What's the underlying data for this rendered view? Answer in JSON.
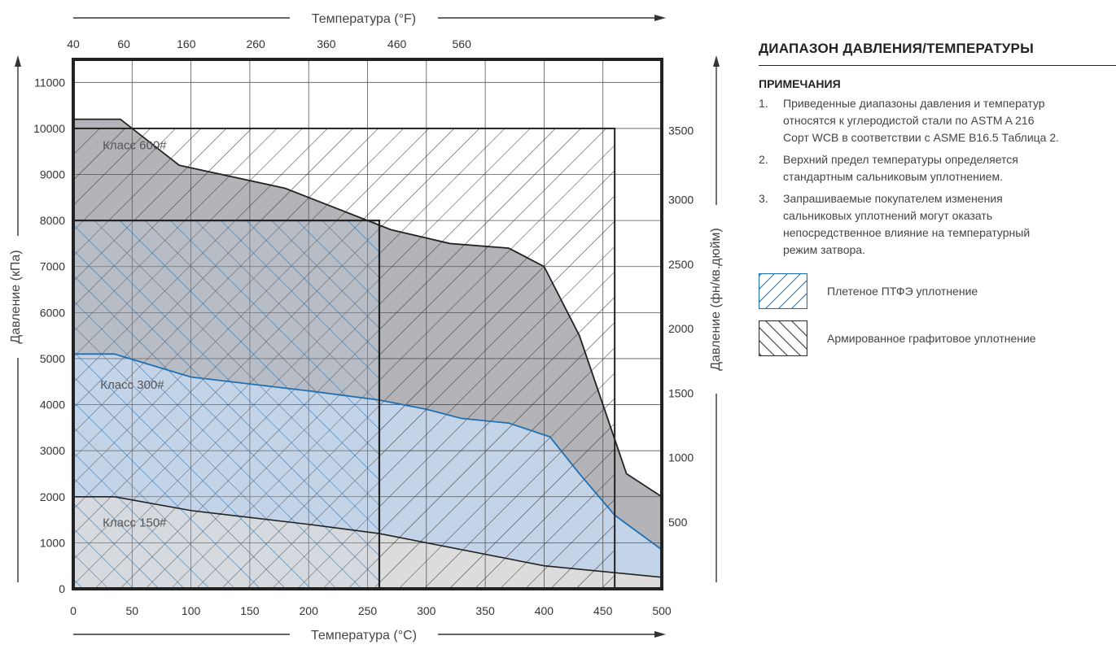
{
  "chart_data": {
    "type": "area",
    "title": "ДИАПАЗОН ДАВЛЕНИЯ/ТЕМПЕРАТУРЫ",
    "xlabel_bottom": "Температура (°C)",
    "xlabel_top": "Температура (°F)",
    "ylabel_left": "Давление (кПа)",
    "ylabel_right": "Давление (фн/кв.дюйм)",
    "x_range": [
      0,
      500
    ],
    "y_range": [
      0,
      11500
    ],
    "x_ticks": [
      0,
      50,
      100,
      150,
      200,
      250,
      300,
      350,
      400,
      450,
      500
    ],
    "y_ticks": [
      0,
      1000,
      2000,
      3000,
      4000,
      5000,
      6000,
      7000,
      8000,
      9000,
      10000,
      11000
    ],
    "top_ticks": [
      {
        "label": "40",
        "x": 0
      },
      {
        "label": "60",
        "x": 43
      },
      {
        "label": "160",
        "x": 96
      },
      {
        "label": "260",
        "x": 155
      },
      {
        "label": "360",
        "x": 215
      },
      {
        "label": "460",
        "x": 275
      },
      {
        "label": "560",
        "x": 330
      }
    ],
    "right_ticks": [
      {
        "label": "500",
        "y": 1450
      },
      {
        "label": "1000",
        "y": 2850
      },
      {
        "label": "1500",
        "y": 4250
      },
      {
        "label": "2000",
        "y": 5650
      },
      {
        "label": "2500",
        "y": 7050
      },
      {
        "label": "3000",
        "y": 8450
      },
      {
        "label": "3500",
        "y": 9950
      }
    ],
    "grid": true,
    "series": [
      {
        "name": "Класс 600#",
        "points": [
          [
            0,
            10200
          ],
          [
            40,
            10200
          ],
          [
            90,
            9200
          ],
          [
            180,
            8700
          ],
          [
            270,
            7800
          ],
          [
            320,
            7500
          ],
          [
            370,
            7400
          ],
          [
            400,
            7000
          ],
          [
            430,
            5500
          ],
          [
            450,
            4000
          ],
          [
            470,
            2500
          ],
          [
            500,
            2000
          ]
        ]
      },
      {
        "name": "Класс 300#",
        "points": [
          [
            0,
            5100
          ],
          [
            35,
            5100
          ],
          [
            100,
            4600
          ],
          [
            200,
            4300
          ],
          [
            260,
            4100
          ],
          [
            300,
            3900
          ],
          [
            330,
            3700
          ],
          [
            370,
            3600
          ],
          [
            405,
            3300
          ],
          [
            430,
            2500
          ],
          [
            460,
            1600
          ],
          [
            500,
            850
          ]
        ]
      },
      {
        "name": "Класс 150#",
        "points": [
          [
            0,
            2000
          ],
          [
            35,
            2000
          ],
          [
            100,
            1700
          ],
          [
            200,
            1400
          ],
          [
            260,
            1200
          ],
          [
            400,
            500
          ],
          [
            500,
            250
          ]
        ]
      }
    ],
    "regions": [
      {
        "name": "Плетеное ПТФЭ уплотнение",
        "x": [
          0,
          260
        ],
        "y": [
          0,
          8000
        ]
      },
      {
        "name": "Армированное графитовое уплотнение",
        "x": [
          0,
          460
        ],
        "y": [
          0,
          10000
        ]
      }
    ]
  },
  "panel": {
    "title": "ДИАПАЗОН ДАВЛЕНИЯ/ТЕМПЕРАТУРЫ",
    "notes_heading": "ПРИМЕЧАНИЯ",
    "notes": [
      {
        "num": "1.",
        "text": "Приведенные диапазоны давления и температур\nотносятся к углеродистой стали по ASTM A 216\nСорт WCB в соответствии с ASME B16.5 Таблица 2."
      },
      {
        "num": "2.",
        "text": "Верхний предел температуры определяется\nстандартным сальниковым уплотнением."
      },
      {
        "num": "3.",
        "text": "Запрашиваемые покупателем изменения\nсальниковых уплотнений могут оказать\nнепосредственное влияние на температурный\nрежим затвора."
      }
    ],
    "legend": [
      {
        "label": "Плетеное ПТФЭ уплотнение",
        "pattern": "forward-hatch",
        "color": "#1f6fb2"
      },
      {
        "label": "Армированное графитовое уплотнение",
        "pattern": "back-hatch",
        "color": "#333333"
      }
    ]
  },
  "colors": {
    "class600_fill": "#b4b4b8",
    "class300_fill": "#c3d3e8",
    "class150_fill": "#dcdcdc",
    "class300_line": "#1f6fb2",
    "frame": "#222222"
  }
}
